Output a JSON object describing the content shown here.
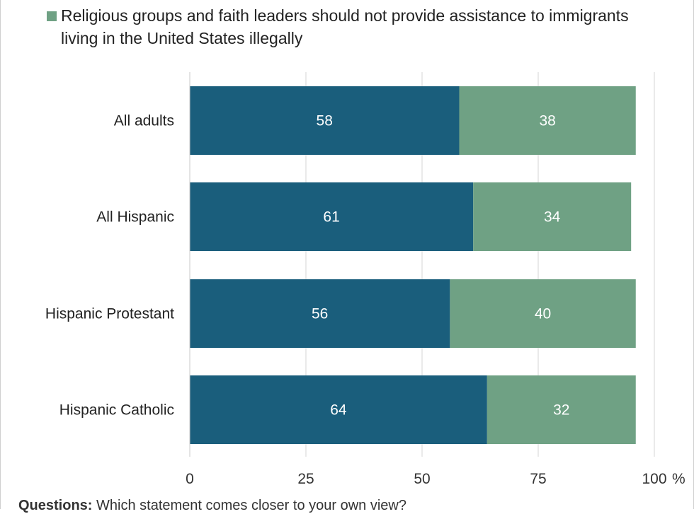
{
  "legend": {
    "entries": [
      {
        "label": "Religious groups and faith leaders should not provide assistance to immigrants living in the United States illegally",
        "color": "#6fa184"
      }
    ]
  },
  "chart_data": {
    "type": "bar",
    "orientation": "horizontal",
    "stacked": true,
    "categories": [
      "All adults",
      "All Hispanic",
      "Hispanic Protestant",
      "Hispanic Catholic"
    ],
    "series": [
      {
        "values": [
          58,
          61,
          56,
          64
        ],
        "color": "#1a5e7c"
      },
      {
        "name": "Religious groups and faith leaders should not provide assistance to immigrants living in the United States illegally",
        "values": [
          38,
          34,
          40,
          32
        ],
        "color": "#6fa184"
      }
    ],
    "xticks": [
      "0",
      "25",
      "50",
      "75",
      "100"
    ],
    "x_unit": "%",
    "xlim": [
      0,
      100
    ],
    "grid": true,
    "legend_position": "top"
  },
  "footnote": {
    "label": "Questions:",
    "text": "Which statement comes closer to your own view?"
  }
}
